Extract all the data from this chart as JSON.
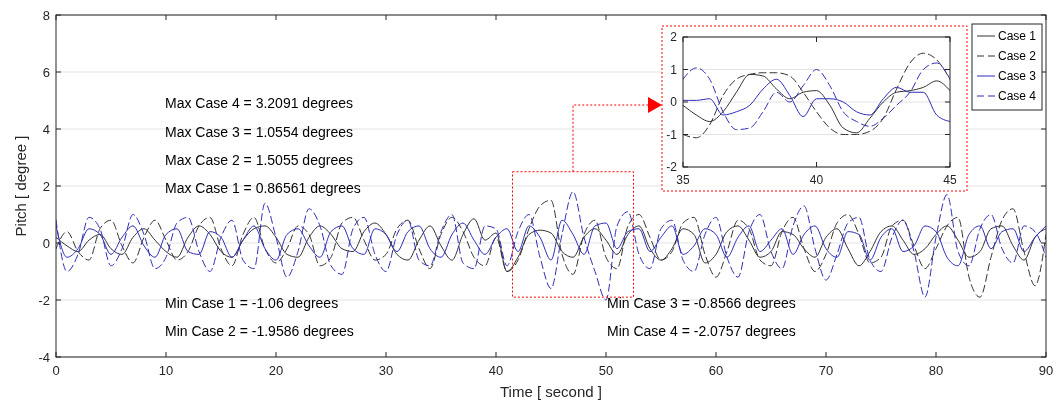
{
  "chart_data": [
    {
      "type": "line",
      "xlabel": "Time [ second ]",
      "ylabel": "Pitch [ degree ]",
      "x": [
        0,
        1,
        2,
        3,
        4,
        5,
        6,
        7,
        8,
        9,
        10,
        11,
        12,
        13,
        14,
        15,
        16,
        17,
        18,
        19,
        20,
        21,
        22,
        23,
        24,
        25,
        26,
        27,
        28,
        29,
        30,
        31,
        32,
        33,
        34,
        35,
        36,
        37,
        38,
        39,
        40,
        41,
        42,
        43,
        44,
        45,
        46,
        47,
        48,
        49,
        50,
        51,
        52,
        53,
        54,
        55,
        56,
        57,
        58,
        59,
        60,
        61,
        62,
        63,
        64,
        65,
        66,
        67,
        68,
        69,
        70,
        71,
        72,
        73,
        74,
        75,
        76,
        77,
        78,
        79,
        80,
        81,
        82,
        83,
        84,
        85,
        86,
        87,
        88,
        89,
        90
      ],
      "xlim": [
        0,
        90
      ],
      "xticks": [
        0,
        10,
        20,
        30,
        40,
        50,
        60,
        70,
        80,
        90
      ],
      "ylim": [
        -4,
        8
      ],
      "yticks": [
        -4,
        -2,
        0,
        2,
        4,
        6,
        8
      ],
      "grid": "y",
      "legend": "top right",
      "series": [
        {
          "name": "Case 1",
          "color": "#333333",
          "line_style": "solid",
          "values": [
            0.2,
            -0.1,
            -0.3,
            0.1,
            0.3,
            -0.2,
            -0.4,
            0.2,
            0.5,
            0.1,
            -0.3,
            -0.5,
            0.2,
            0.6,
            0.3,
            -0.3,
            -0.5,
            0.1,
            0.5,
            0.6,
            0.2,
            -0.4,
            -0.5,
            0.2,
            0.6,
            0.3,
            -0.2,
            -0.3,
            0.4,
            0.7,
            0.3,
            -0.4,
            -0.6,
            0.1,
            0.6,
            -0.1,
            -0.6,
            0.3,
            0.85,
            0.1,
            0.35,
            -1.0,
            -0.5,
            0.3,
            0.45,
            0.35,
            -0.3,
            -0.5,
            0.2,
            0.5,
            0.1,
            -0.4,
            0.3,
            0.6,
            -0.2,
            -0.6,
            -0.2,
            0.5,
            0.3,
            -0.7,
            -0.4,
            0.4,
            0.6,
            0.1,
            -0.5,
            -0.3,
            0.4,
            0.3,
            -0.2,
            -0.5,
            0.2,
            0.5,
            -0.2,
            -0.8,
            -0.3,
            0.4,
            0.6,
            0.1,
            -0.4,
            -0.2,
            0.3,
            0.6,
            0.1,
            -0.5,
            -0.3,
            0.5,
            0.6,
            -0.1,
            -0.6,
            0.2,
            0.5
          ]
        },
        {
          "name": "Case 2",
          "color": "#333333",
          "line_style": "dashed",
          "values": [
            -0.2,
            0.4,
            -0.3,
            -0.6,
            0.5,
            0.8,
            -0.1,
            -0.7,
            0.2,
            0.8,
            0.1,
            -0.6,
            -0.3,
            0.6,
            0.9,
            -0.2,
            -0.8,
            0.3,
            0.9,
            -0.2,
            -0.7,
            -0.2,
            0.6,
            0.3,
            -0.8,
            -0.5,
            0.7,
            0.9,
            0.1,
            -0.6,
            -0.4,
            0.5,
            0.8,
            -0.2,
            -0.9,
            0.3,
            0.9,
            0.4,
            -0.5,
            -0.8,
            0.2,
            -1.0,
            -0.6,
            0.5,
            1.3,
            1.5,
            -0.4,
            -1.1,
            0.3,
            0.8,
            -0.5,
            -0.9,
            0.6,
            1.0,
            0.2,
            -0.6,
            -0.3,
            0.7,
            0.9,
            -0.4,
            -1.2,
            -0.3,
            0.8,
            0.5,
            -0.6,
            -0.8,
            0.4,
            0.9,
            -0.2,
            -1.0,
            -0.4,
            0.7,
            1.0,
            0.3,
            -0.7,
            -0.5,
            0.6,
            0.8,
            -0.1,
            -0.9,
            -0.2,
            0.6,
            0.9,
            -1.2,
            -1.9,
            -0.5,
            0.8,
            1.2,
            -0.3,
            -1.5,
            0.3
          ]
        },
        {
          "name": "Case 3",
          "color": "#2e2eb8",
          "line_style": "solid",
          "values": [
            0.6,
            -0.5,
            -0.2,
            0.5,
            0.3,
            -0.4,
            0.2,
            0.6,
            -0.1,
            -0.5,
            0.3,
            0.5,
            -0.3,
            -0.4,
            0.4,
            0.2,
            -0.5,
            0.1,
            0.6,
            -0.2,
            -0.6,
            0.3,
            0.5,
            -0.1,
            -0.5,
            0.4,
            0.6,
            -0.2,
            -0.4,
            0.5,
            0.3,
            -0.3,
            0.4,
            0.6,
            -0.2,
            -0.5,
            0.3,
            0.7,
            0.1,
            -0.4,
            0.2,
            0.5,
            -0.3,
            0.6,
            0.2,
            -0.6,
            0.8,
            0.3,
            -0.4,
            0.6,
            0.7,
            -0.2,
            0.4,
            0.5,
            -0.3,
            0.2,
            0.6,
            -0.4,
            -0.1,
            0.5,
            0.3,
            -0.5,
            0.2,
            0.6,
            -0.3,
            0.1,
            0.5,
            -0.4,
            0.3,
            0.6,
            -0.2,
            -0.5,
            0.4,
            0.3,
            -0.6,
            0.2,
            0.5,
            -0.3,
            -0.1,
            0.6,
            0.4,
            -0.5,
            -0.8,
            0.3,
            0.6,
            -0.2,
            0.4,
            0.5,
            -0.3,
            0.2,
            0.6
          ]
        },
        {
          "name": "Case 4",
          "color": "#2e2eb8",
          "line_style": "dashed",
          "values": [
            0.8,
            -1.0,
            -0.4,
            0.9,
            0.5,
            -0.8,
            -0.2,
            1.0,
            0.3,
            -0.9,
            -0.5,
            0.7,
            0.9,
            -0.3,
            -1.0,
            0.2,
            0.8,
            -0.6,
            -0.9,
            1.4,
            0.2,
            -1.2,
            -0.3,
            1.2,
            0.6,
            -0.8,
            -1.1,
            0.5,
            0.9,
            -0.4,
            -1.0,
            0.3,
            0.8,
            -0.6,
            -0.8,
            0.4,
            1.0,
            -0.7,
            -0.9,
            0.6,
            0.5,
            -0.8,
            0.4,
            1.0,
            -0.5,
            -1.6,
            0.3,
            1.8,
            0.2,
            -1.0,
            -2.0,
            0.6,
            1.1,
            -0.4,
            -0.9,
            0.5,
            0.8,
            -0.6,
            -1.0,
            0.3,
            0.9,
            -0.5,
            -1.2,
            0.4,
            1.0,
            -0.3,
            -0.9,
            0.6,
            1.3,
            -0.2,
            -1.3,
            -0.4,
            0.7,
            0.9,
            -0.6,
            -1.0,
            0.2,
            0.8,
            -0.3,
            -1.9,
            0.2,
            1.7,
            -0.3,
            -0.8,
            0.5,
            1.0,
            -0.2,
            -0.7,
            0.6,
            0.4,
            -0.5
          ]
        }
      ],
      "annotations": [
        "Max Case 4 = 3.2091 degrees",
        "Max Case 3 = 1.0554 degrees",
        "Max Case 2 = 1.5055 degrees",
        "Max Case 1 = 0.86561 degrees",
        "Min Case 1 = -1.06 degrees",
        "Min Case 2 = -1.9586 degrees",
        "Min Case 3 = -0.8566 degrees",
        "Min Case 4 = -2.0757 degrees"
      ]
    },
    {
      "type": "line",
      "x": [
        35,
        35.5,
        36,
        36.5,
        37,
        37.5,
        38,
        38.5,
        39,
        39.5,
        40,
        40.5,
        41,
        41.5,
        42,
        42.5,
        43,
        43.5,
        44,
        44.5,
        45
      ],
      "xlim": [
        35,
        45
      ],
      "xticks": [
        35,
        40,
        45
      ],
      "ylim": [
        -2,
        2
      ],
      "yticks": [
        -2,
        -1,
        0,
        1,
        2
      ],
      "grid": "y",
      "series": [
        {
          "color": "#333333",
          "line_style": "solid",
          "values": [
            -0.1,
            -0.4,
            -0.6,
            -0.3,
            0.3,
            0.85,
            0.8,
            0.4,
            0.1,
            0.3,
            0.35,
            -0.1,
            -0.8,
            -0.95,
            -0.5,
            0,
            0.3,
            0.35,
            0.45,
            0.65,
            0.35
          ]
        },
        {
          "color": "#333333",
          "line_style": "dashed",
          "values": [
            -1.0,
            -1.1,
            -0.7,
            0.2,
            0.7,
            0.85,
            0.9,
            0.9,
            0.8,
            0.3,
            -0.3,
            -0.8,
            -1.0,
            -1.0,
            -0.9,
            -0.5,
            0.4,
            1.2,
            1.5,
            1.3,
            0.7
          ]
        },
        {
          "color": "#2e2eb8",
          "line_style": "solid",
          "values": [
            0.05,
            0.05,
            0.1,
            -0.4,
            -0.3,
            -0.1,
            0.4,
            0.7,
            0.2,
            -0.45,
            0.1,
            0.1,
            0,
            -0.3,
            -0.4,
            0.1,
            0.45,
            0.3,
            0.3,
            -0.4,
            -0.6
          ]
        },
        {
          "color": "#2e2eb8",
          "line_style": "dashed",
          "values": [
            0.7,
            1.05,
            0.7,
            -0.3,
            -0.85,
            -0.8,
            -0.3,
            0.3,
            0,
            0.5,
            1.0,
            0.5,
            -0.3,
            -0.6,
            -0.75,
            -0.5,
            -0.1,
            0.3,
            1.0,
            1.2,
            0.7
          ]
        }
      ]
    }
  ]
}
